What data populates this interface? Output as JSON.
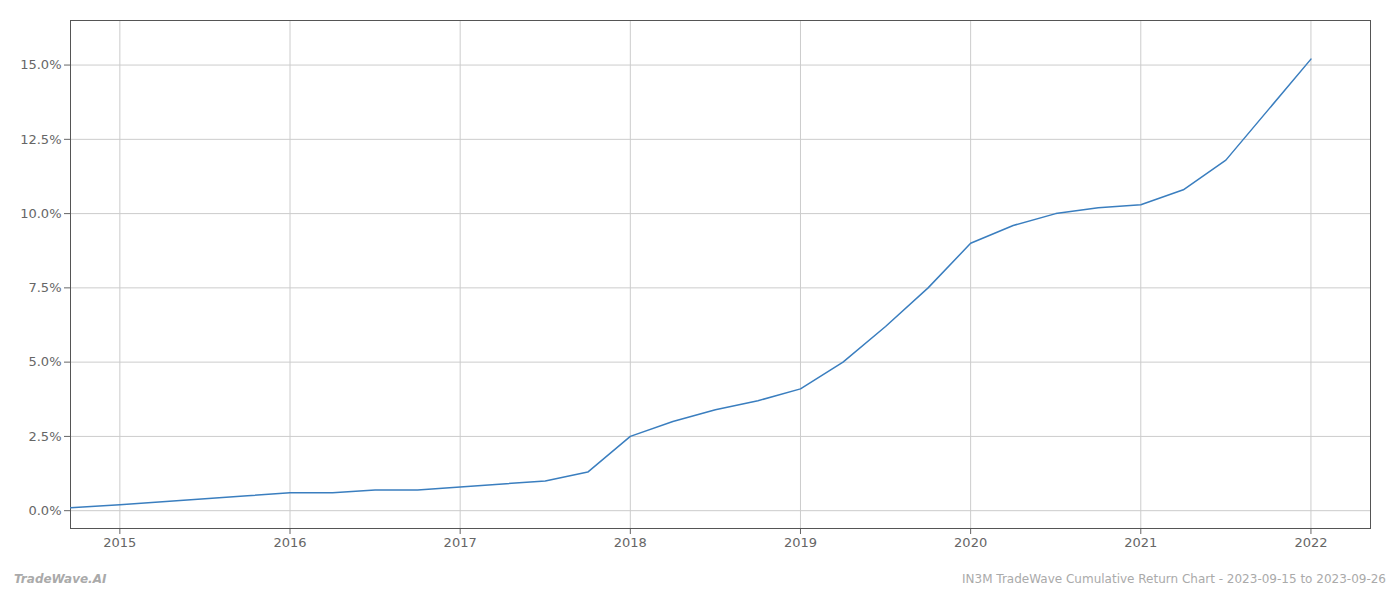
{
  "chart_data": {
    "type": "line",
    "x": [
      2014.71,
      2015.0,
      2015.25,
      2015.5,
      2015.75,
      2016.0,
      2016.25,
      2016.5,
      2016.75,
      2017.0,
      2017.25,
      2017.5,
      2017.75,
      2018.0,
      2018.25,
      2018.5,
      2018.75,
      2019.0,
      2019.25,
      2019.5,
      2019.75,
      2020.0,
      2020.25,
      2020.5,
      2020.75,
      2021.0,
      2021.25,
      2021.5,
      2021.75,
      2022.0
    ],
    "values": [
      0.001,
      0.002,
      0.003,
      0.004,
      0.005,
      0.006,
      0.006,
      0.007,
      0.007,
      0.008,
      0.009,
      0.01,
      0.013,
      0.025,
      0.03,
      0.034,
      0.037,
      0.041,
      0.05,
      0.062,
      0.075,
      0.09,
      0.096,
      0.1,
      0.102,
      0.103,
      0.108,
      0.118,
      0.135,
      0.152
    ],
    "color": "#3a7ebf",
    "xlim": [
      2014.71,
      2022.35
    ],
    "xticks": [
      2015,
      2016,
      2017,
      2018,
      2019,
      2020,
      2021,
      2022
    ],
    "ylim": [
      -0.006,
      0.165
    ],
    "yticks": [
      {
        "value": 0.0,
        "label": "0.0%"
      },
      {
        "value": 0.025,
        "label": "2.5%"
      },
      {
        "value": 0.05,
        "label": "5.0%"
      },
      {
        "value": 0.075,
        "label": "7.5%"
      },
      {
        "value": 0.1,
        "label": "10.0%"
      },
      {
        "value": 0.125,
        "label": "12.5%"
      },
      {
        "value": 0.15,
        "label": "15.0%"
      }
    ],
    "grid": true,
    "annotations": [
      "TradeWave.AI",
      "IN3M TradeWave Cumulative Return Chart - 2023-09-15 to 2023-09-26"
    ]
  }
}
